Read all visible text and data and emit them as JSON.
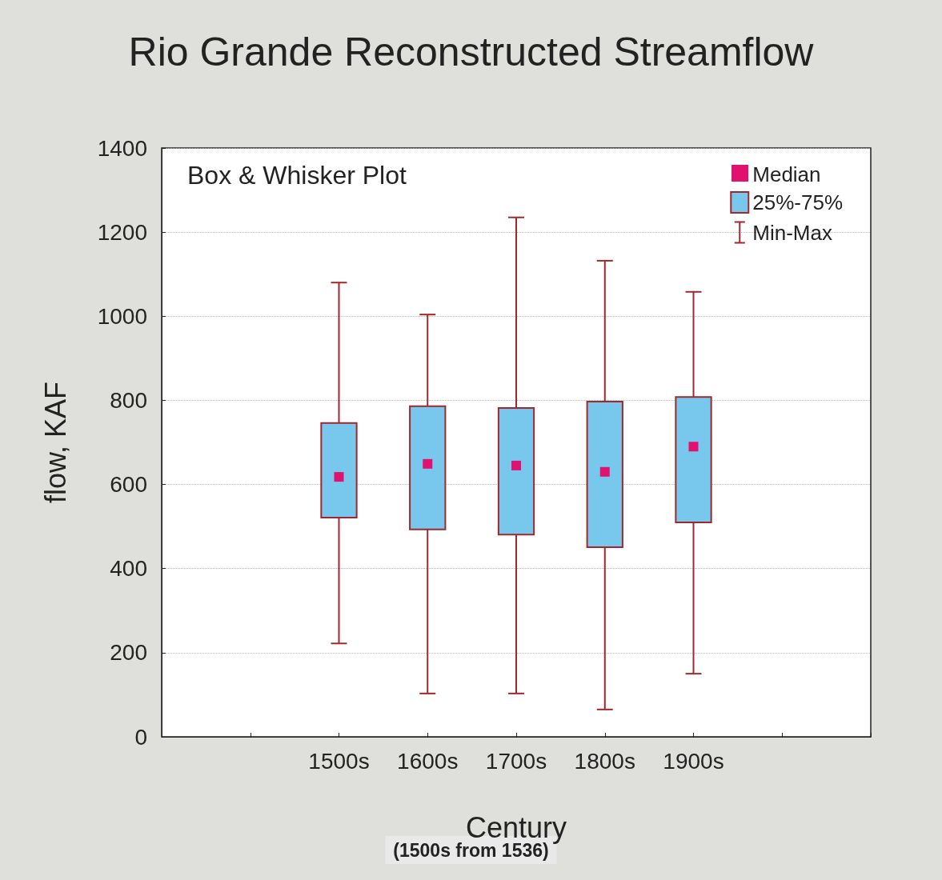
{
  "chart_data": {
    "type": "box",
    "title": "Rio Grande Reconstructed Streamflow",
    "xlabel": "Century",
    "ylabel": "flow, KAF",
    "categories": [
      null,
      null,
      "1500s",
      "1600s",
      "1700s",
      "1800s",
      "1900s",
      null,
      null
    ],
    "ylim": [
      0,
      1400
    ],
    "yticks": [
      0,
      200,
      400,
      600,
      800,
      1000,
      1200,
      1400
    ],
    "grid": "y",
    "legend": "top right",
    "annotations": [
      "Box & Whisker Plot",
      "Median",
      "Min-Max",
      "(1500s from 1536)"
    ],
    "series": [
      {
        "name": "25%-75%",
        "color": "#78c8ee",
        "boxes": [
          null,
          null,
          {
            "low": 222,
            "q1": 521,
            "median": 618,
            "q3": 746,
            "high": 1080
          },
          {
            "low": 103,
            "q1": 493,
            "median": 649,
            "q3": 786,
            "high": 1004
          },
          {
            "low": 103,
            "q1": 481,
            "median": 645,
            "q3": 782,
            "high": 1235
          },
          {
            "low": 65,
            "q1": 451,
            "median": 630,
            "q3": 797,
            "high": 1132
          },
          {
            "low": 150,
            "q1": 510,
            "median": 690,
            "q3": 808,
            "high": 1058
          },
          null,
          null
        ]
      }
    ]
  }
}
